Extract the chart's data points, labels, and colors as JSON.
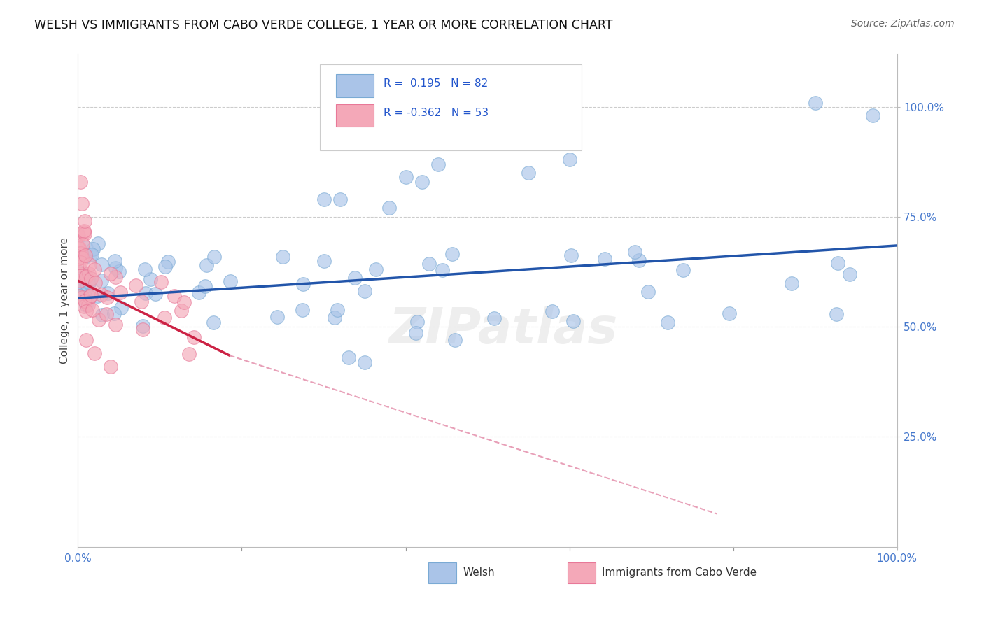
{
  "title": "WELSH VS IMMIGRANTS FROM CABO VERDE COLLEGE, 1 YEAR OR MORE CORRELATION CHART",
  "source": "Source: ZipAtlas.com",
  "ylabel": "College, 1 year or more",
  "xlim": [
    0.0,
    1.0
  ],
  "ylim": [
    0.0,
    1.12
  ],
  "ytick_labels": [
    "25.0%",
    "50.0%",
    "75.0%",
    "100.0%"
  ],
  "ytick_vals": [
    0.25,
    0.5,
    0.75,
    1.0
  ],
  "grid_color": "#cccccc",
  "blue_scatter_color": "#aac4e8",
  "pink_scatter_color": "#f4a8b8",
  "blue_edge_color": "#7aaad4",
  "pink_edge_color": "#e87898",
  "blue_line_color": "#2255aa",
  "pink_line_solid_color": "#cc2244",
  "pink_line_dash_color": "#e8a0b8",
  "r_blue": 0.195,
  "n_blue": 82,
  "r_pink": -0.362,
  "n_pink": 53,
  "watermark": "ZIPatlas",
  "background_color": "#ffffff",
  "blue_line_x0": 0.0,
  "blue_line_y0": 0.565,
  "blue_line_x1": 1.0,
  "blue_line_y1": 0.685,
  "pink_line_x0": 0.0,
  "pink_line_y0": 0.605,
  "pink_line_xsolid_end": 0.185,
  "pink_line_ysolid_end": 0.435,
  "pink_line_xdash_end": 0.78,
  "pink_line_ydash_end": 0.075
}
